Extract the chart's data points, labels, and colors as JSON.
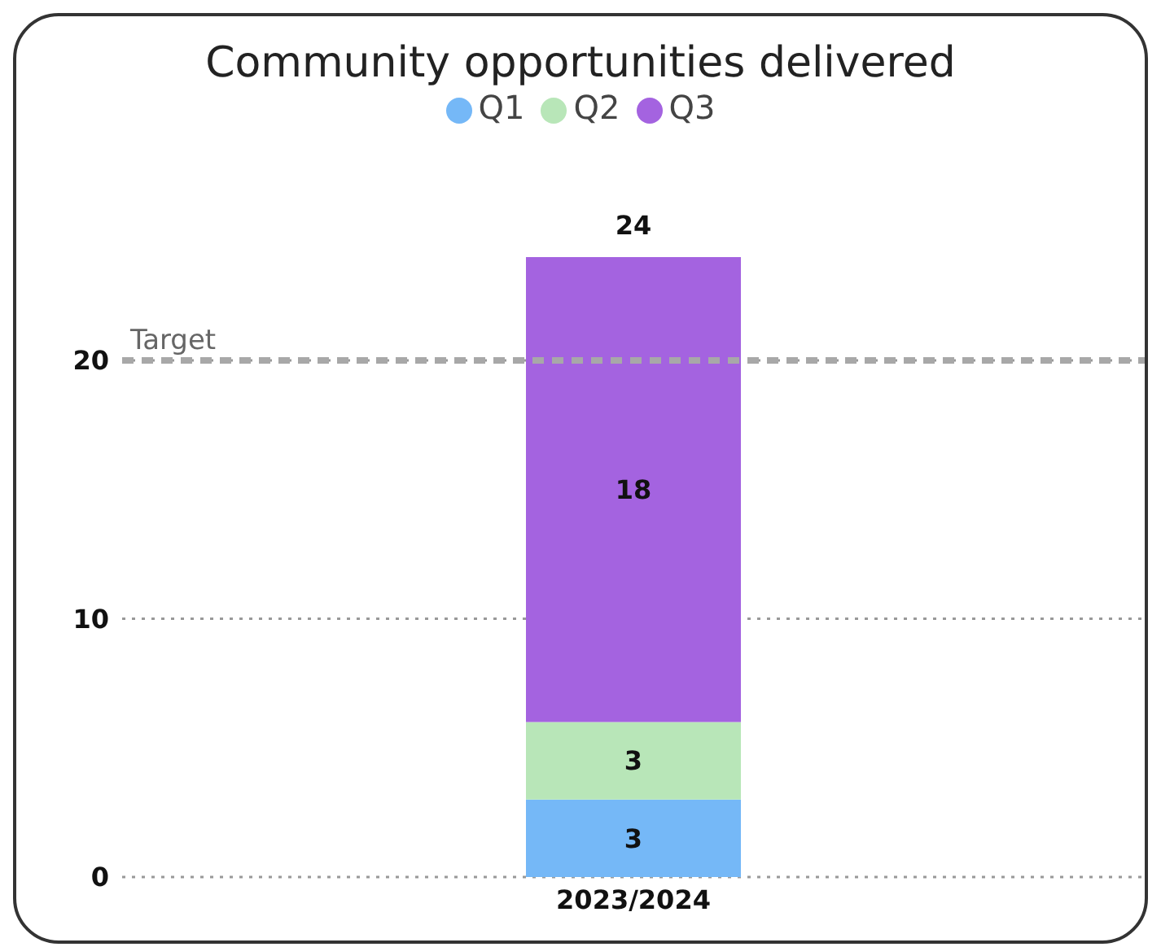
{
  "chart_data": {
    "type": "bar",
    "title": "Community opportunities delivered",
    "categories": [
      "2023/2024"
    ],
    "stacked": true,
    "series": [
      {
        "name": "Q1",
        "color": "#75b8f7",
        "values": [
          3
        ]
      },
      {
        "name": "Q2",
        "color": "#b8e6b8",
        "values": [
          3
        ]
      },
      {
        "name": "Q3",
        "color": "#a463e0",
        "values": [
          18
        ]
      }
    ],
    "ylim": [
      0,
      24
    ],
    "yticks": [
      0,
      10,
      20
    ],
    "grid": "y",
    "legend": "top",
    "data_labels": true,
    "totals": [
      "24"
    ],
    "ref_lines": [
      {
        "axis": "y",
        "value": 20,
        "label": "Target",
        "color": "#a8a8a8",
        "line_style": "dashed"
      }
    ]
  }
}
